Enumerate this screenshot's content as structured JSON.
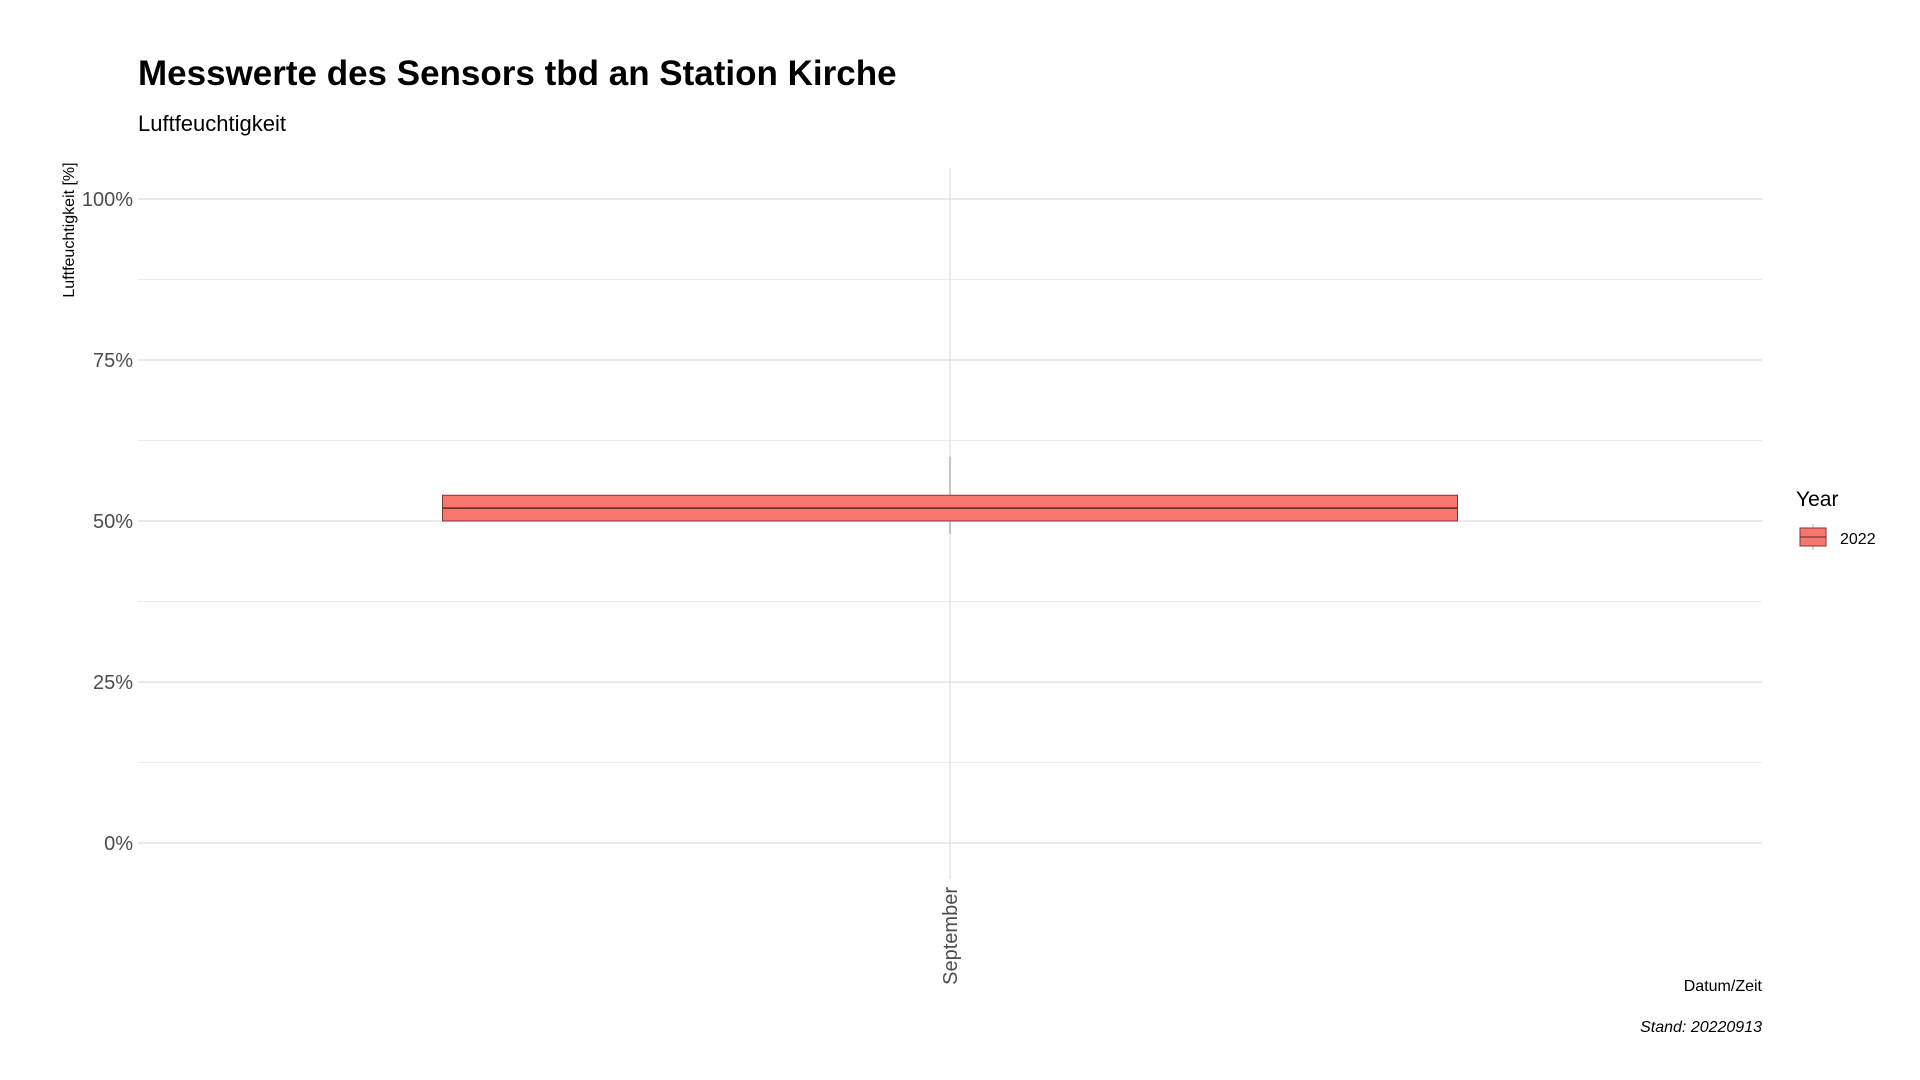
{
  "chart_data": {
    "type": "boxplot",
    "title": "Messwerte des Sensors tbd an Station Kirche",
    "subtitle": "Luftfeuchtigkeit",
    "xlabel": "Datum/Zeit",
    "ylabel": "Luftfeuchtigkeit [%]",
    "caption": "Stand: 20220913",
    "categories": [
      "September"
    ],
    "ylim": [
      0,
      100
    ],
    "y_ticks": [
      {
        "value": 0,
        "label": "0%"
      },
      {
        "value": 25,
        "label": "25%"
      },
      {
        "value": 50,
        "label": "50%"
      },
      {
        "value": 75,
        "label": "75%"
      },
      {
        "value": 100,
        "label": "100%"
      }
    ],
    "y_minor_ticks": [
      12.5,
      37.5,
      62.5,
      87.5
    ],
    "grid": true,
    "legend": {
      "title": "Year",
      "position": "right",
      "entries": [
        "2022"
      ]
    },
    "series": [
      {
        "name": "2022",
        "color": "#F8766D",
        "boxes": [
          {
            "category": "September",
            "whisker_low": 48,
            "q1": 50,
            "median": 52,
            "q3": 54,
            "whisker_high": 60
          }
        ]
      }
    ]
  }
}
